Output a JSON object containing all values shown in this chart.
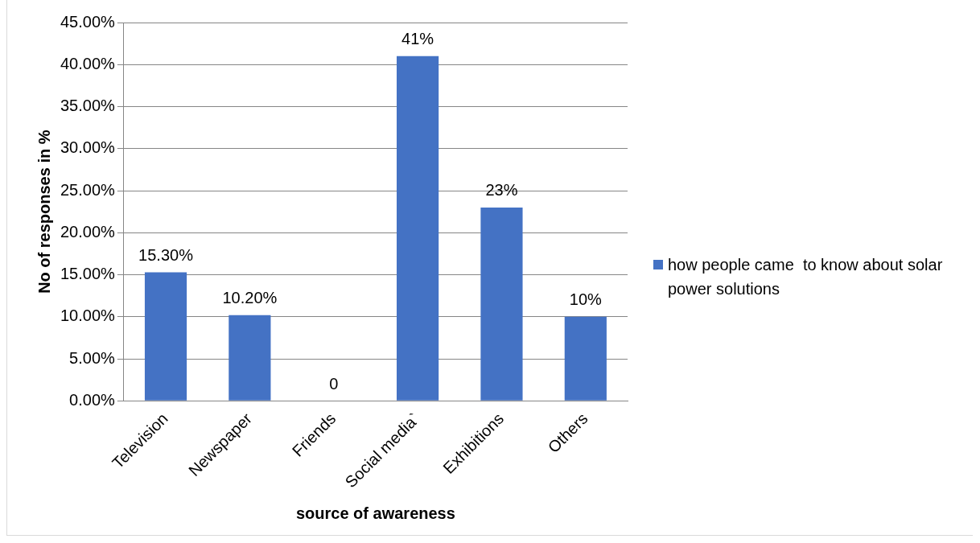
{
  "chart_data": {
    "type": "bar",
    "xlabel": "source of awareness",
    "ylabel": "No of responses in %",
    "categories": [
      "Television",
      "Newspaper",
      "Friends",
      "Social media`",
      "Exhibitions",
      "Others"
    ],
    "series": [
      {
        "name": "how people came  to know about solar power solutions",
        "color": "#4472c4",
        "values": [
          15.3,
          10.2,
          0,
          41,
          23,
          10
        ],
        "value_labels": [
          "15.30%",
          "10.20%",
          "0",
          "41%",
          "23%",
          "10%"
        ]
      }
    ],
    "ylim": [
      0,
      45
    ],
    "yticks": [
      {
        "value": 0,
        "label": "0.00%"
      },
      {
        "value": 5,
        "label": "5.00%"
      },
      {
        "value": 10,
        "label": "10.00%"
      },
      {
        "value": 15,
        "label": "15.00%"
      },
      {
        "value": 20,
        "label": "20.00%"
      },
      {
        "value": 25,
        "label": "25.00%"
      },
      {
        "value": 30,
        "label": "30.00%"
      },
      {
        "value": 35,
        "label": "35.00%"
      },
      {
        "value": 40,
        "label": "40.00%"
      },
      {
        "value": 45,
        "label": "45.00%"
      }
    ],
    "grid": "y",
    "legend": "right"
  }
}
